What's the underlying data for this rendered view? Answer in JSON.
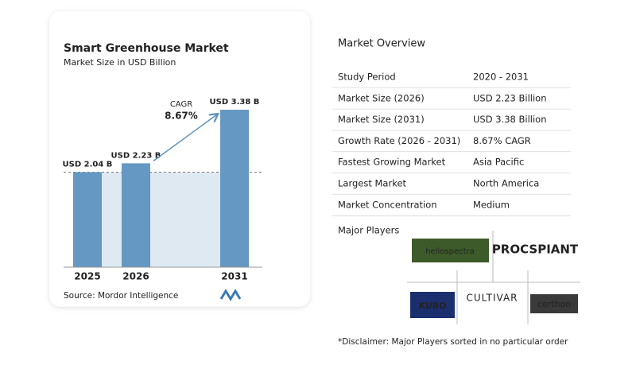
{
  "chart_data": {
    "type": "bar",
    "title": "Smart Greenhouse Market",
    "subtitle": "Market Size in USD Billion",
    "categories": [
      "2025",
      "2026",
      "2031"
    ],
    "values": [
      2.04,
      2.23,
      3.38
    ],
    "value_labels": [
      "USD 2.04 B",
      "USD 2.23 B",
      "USD 3.38 B"
    ],
    "color": "#6598c2",
    "annotation": {
      "label": "CAGR",
      "value": "8.67%"
    },
    "source": "Source:  Mordor Intelligence"
  },
  "overview": {
    "title": "Market Overview",
    "rows": [
      [
        "Study Period",
        "2020 - 2031"
      ],
      [
        "Market Size (2026)",
        "USD 2.23 Billion"
      ],
      [
        "Market Size (2031)",
        "USD 3.38 Billion"
      ],
      [
        "Growth Rate (2026 - 2031)",
        "8.67% CAGR"
      ],
      [
        "Fastest Growing Market",
        "Asia Pacific"
      ],
      [
        "Largest Market",
        "North America"
      ],
      [
        "Market Concentration",
        "Medium"
      ]
    ]
  },
  "players": {
    "title": "Major Players",
    "logos": [
      "heliospectra",
      "PROCSPIANT",
      "KUBO",
      "CULTIVAR",
      "certhon"
    ]
  },
  "disclaimer": "*Disclaimer: Major Players sorted in no particular order"
}
